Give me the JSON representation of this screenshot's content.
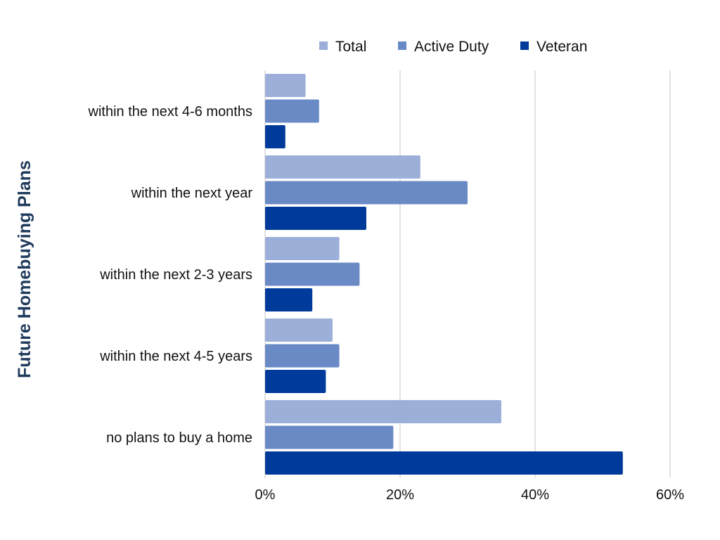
{
  "chart_data": {
    "type": "bar",
    "orientation": "horizontal",
    "categories": [
      "within the next 4-6 months",
      "within the next year",
      "within the next 2-3 years",
      "within the next 4-5 years",
      "no plans to buy a home"
    ],
    "series": [
      {
        "name": "Total",
        "color": "#9bafd8",
        "values": [
          6,
          23,
          11,
          10,
          35
        ]
      },
      {
        "name": "Active Duty",
        "color": "#6a8ac6",
        "values": [
          8,
          30,
          14,
          11,
          19
        ]
      },
      {
        "name": "Veteran",
        "color": "#003a9b",
        "values": [
          3,
          15,
          7,
          9,
          53
        ]
      }
    ],
    "xlim": [
      0,
      60
    ],
    "xticks": [
      0,
      20,
      40,
      60
    ],
    "xtick_labels": [
      "0%",
      "20%",
      "40%",
      "60%"
    ],
    "ylabel": "Future Homebuying Plans",
    "xlabel": "",
    "title": "",
    "grid": "vertical",
    "legend_position": "top"
  }
}
